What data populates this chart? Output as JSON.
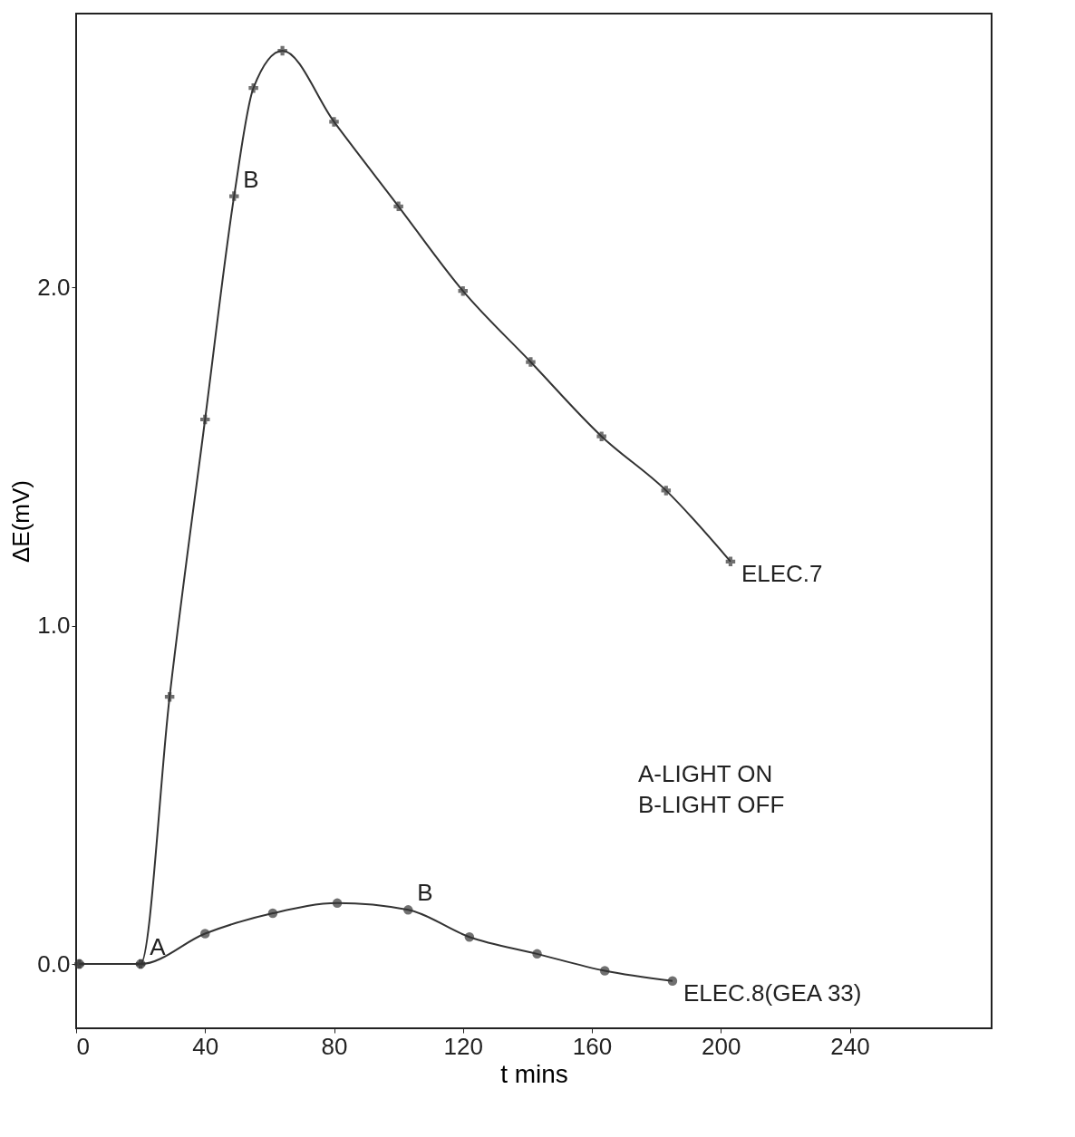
{
  "chart_data": {
    "type": "line",
    "xlabel": "t mins",
    "ylabel": "ΔE(mV)",
    "xlim": [
      0,
      284
    ],
    "ylim": [
      -0.19,
      2.81
    ],
    "xticks": [
      0,
      40,
      80,
      120,
      160,
      200,
      240
    ],
    "yticks": [
      {
        "value": 0,
        "label": "0.0"
      },
      {
        "value": 1,
        "label": "1.0"
      },
      {
        "value": 2,
        "label": "2.0"
      }
    ],
    "grid": false,
    "series": [
      {
        "name": "ELEC.7",
        "color": "#333333",
        "marker": "cross",
        "x": [
          1,
          20,
          29,
          40,
          49,
          55,
          64,
          80,
          100,
          120,
          141,
          163,
          183,
          203
        ],
        "values": [
          0,
          0,
          0.79,
          1.61,
          2.27,
          2.59,
          2.7,
          2.49,
          2.24,
          1.99,
          1.78,
          1.56,
          1.4,
          1.19
        ]
      },
      {
        "name": "ELEC.8(GEA 33)",
        "color": "#333333",
        "marker": "circle",
        "x": [
          1,
          20,
          40,
          61,
          81,
          103,
          122,
          143,
          164,
          185
        ],
        "values": [
          0,
          0,
          0.09,
          0.15,
          0.18,
          0.16,
          0.08,
          0.03,
          -0.02,
          -0.05
        ]
      }
    ],
    "annotations": [
      {
        "text": "A",
        "x": 20,
        "y": 0
      },
      {
        "text": "B",
        "x": 49,
        "y": 2.27
      },
      {
        "text": "B",
        "x": 103,
        "y": 0.16
      },
      "A-LIGHT ON",
      "B-LIGHT OFF"
    ]
  }
}
